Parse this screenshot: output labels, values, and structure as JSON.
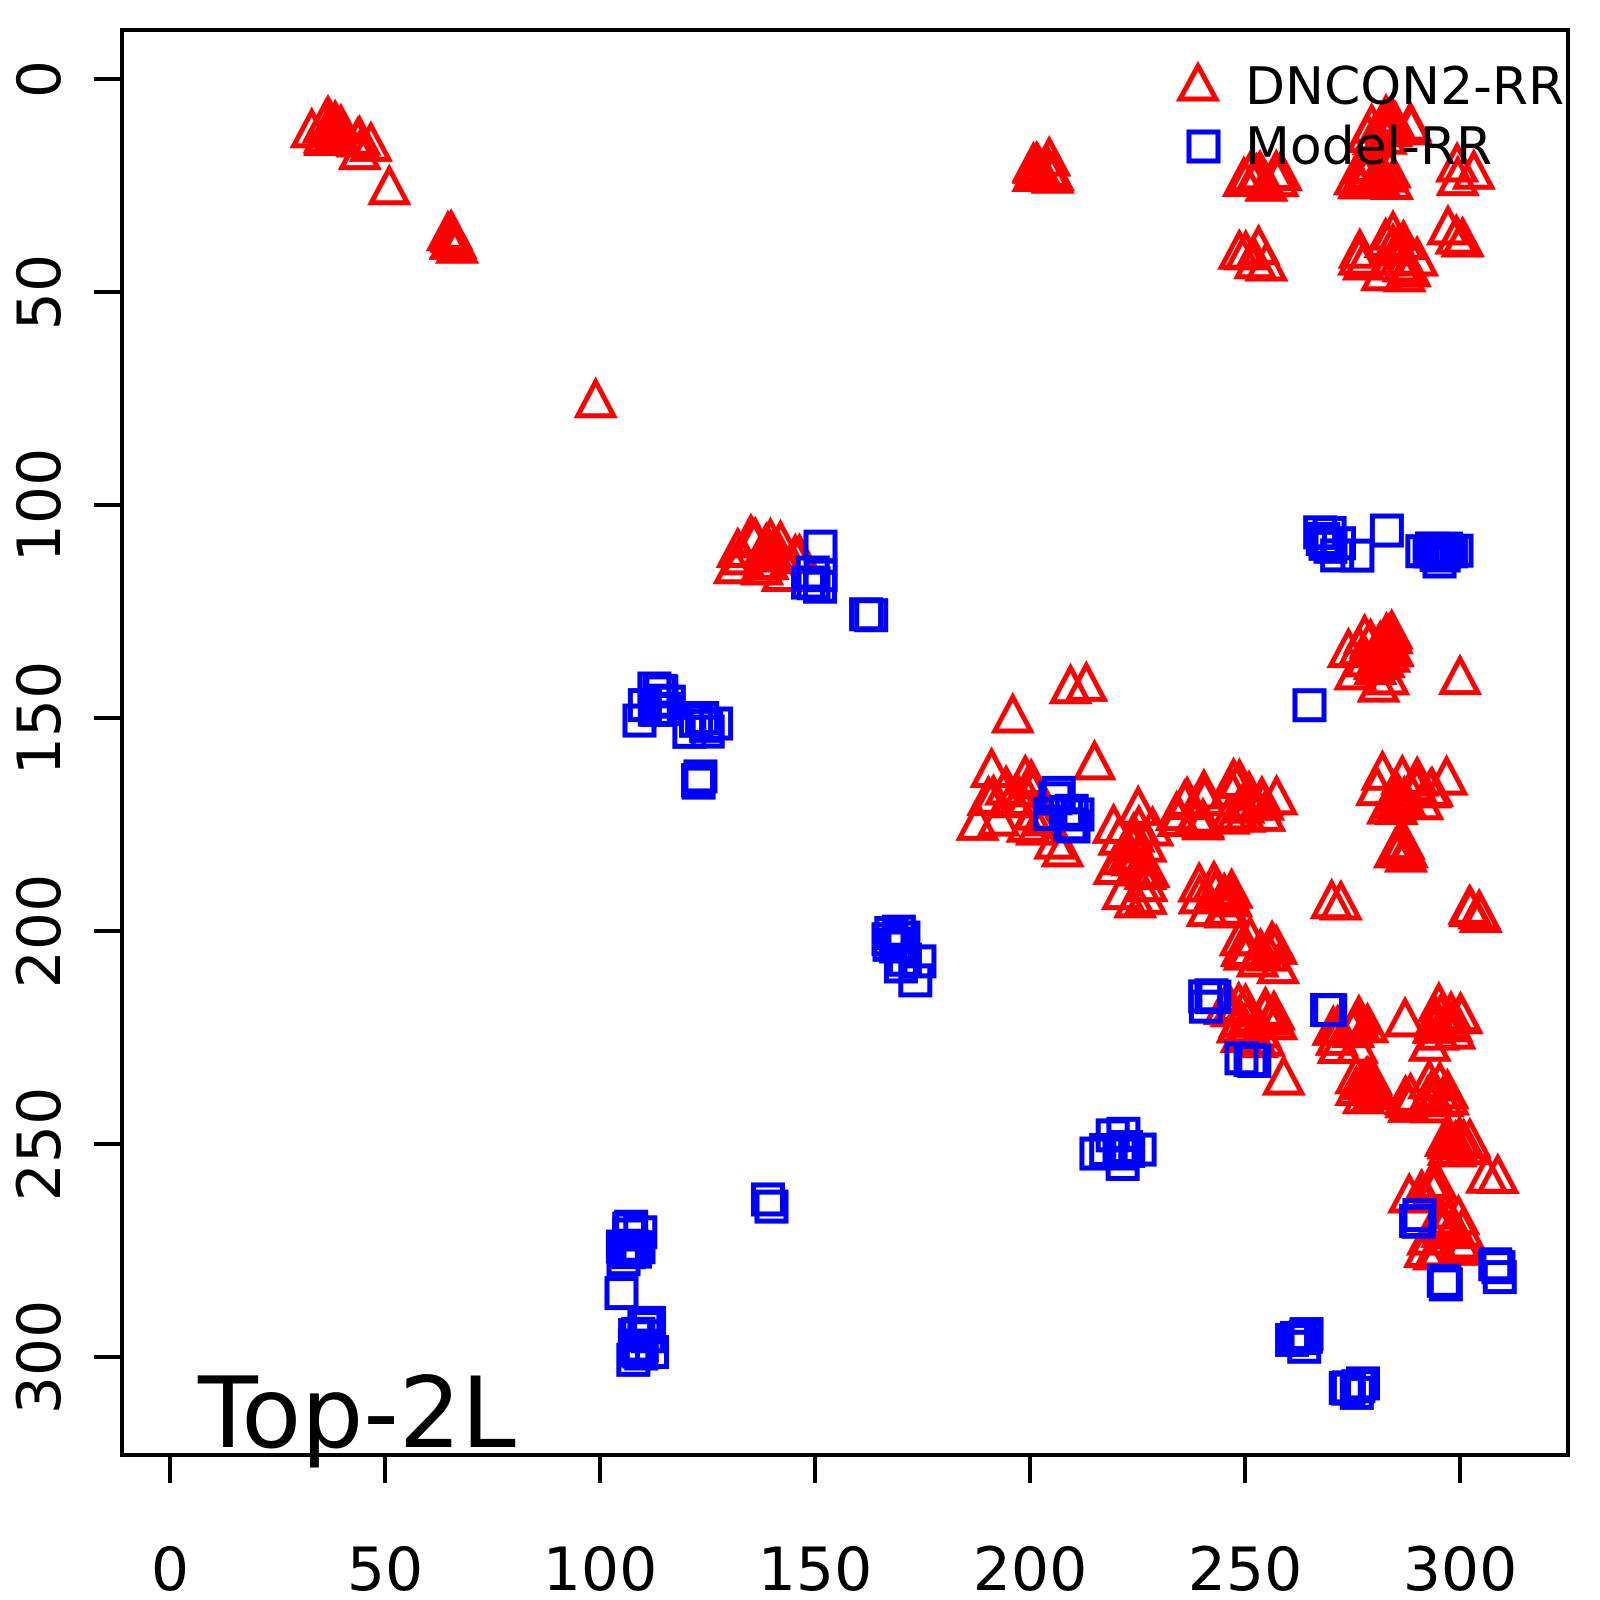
{
  "figure": {
    "background": "#FFFFFF",
    "frame_color": "#000000"
  },
  "legend": {
    "position": "top-right",
    "items": [
      {
        "label": "DNCON2-RR",
        "marker": "open-triangle",
        "color": "#FF0000"
      },
      {
        "label": "Model-RR",
        "marker": "open-square",
        "color": "#0000FF"
      }
    ]
  },
  "annotation": {
    "text": "Top-2L",
    "position": "bottom-left",
    "color": "#000000"
  },
  "chart_data": {
    "type": "scatter",
    "title": "",
    "xlabel": "",
    "ylabel": "",
    "grid": false,
    "x_ticks": [
      0,
      50,
      100,
      150,
      200,
      250,
      300
    ],
    "y_ticks": [
      0,
      50,
      100,
      150,
      200,
      250,
      300
    ],
    "xlim": [
      -11,
      325
    ],
    "ylim": [
      -11.5,
      323
    ],
    "y_axis_reversed": true,
    "legend_position": "top-right",
    "annotation": {
      "text": "Top-2L"
    },
    "cluster_note": "Overlapping contact-map points encoded as clusters: center (x,y) in residue indices, n = point count, sx/sy = half-spread",
    "series": [
      {
        "name": "DNCON2-RR",
        "marker": "open-triangle",
        "color": "#FF0000",
        "clusters": [
          {
            "x": 37,
            "y": 12,
            "n": 14,
            "sx": 3,
            "sy": 2.5
          },
          {
            "x": 45,
            "y": 16,
            "n": 4,
            "sx": 2.5,
            "sy": 2
          },
          {
            "x": 51,
            "y": 26,
            "n": 1,
            "sx": 0,
            "sy": 0
          },
          {
            "x": 64,
            "y": 38,
            "n": 7,
            "sx": 2.5,
            "sy": 2
          },
          {
            "x": 99,
            "y": 76,
            "n": 1,
            "sx": 0,
            "sy": 0
          },
          {
            "x": 139,
            "y": 112,
            "n": 20,
            "sx": 6,
            "sy": 4.5
          },
          {
            "x": 203,
            "y": 22,
            "n": 12,
            "sx": 3,
            "sy": 2.5
          },
          {
            "x": 284,
            "y": 12,
            "n": 12,
            "sx": 5,
            "sy": 2.5
          },
          {
            "x": 252,
            "y": 23,
            "n": 9,
            "sx": 6,
            "sy": 3
          },
          {
            "x": 281,
            "y": 23,
            "n": 12,
            "sx": 6,
            "sy": 3
          },
          {
            "x": 300,
            "y": 23,
            "n": 3,
            "sx": 4,
            "sy": 2
          },
          {
            "x": 253,
            "y": 42,
            "n": 5,
            "sx": 4,
            "sy": 3
          },
          {
            "x": 282,
            "y": 42,
            "n": 14,
            "sx": 6,
            "sy": 4
          },
          {
            "x": 301,
            "y": 38,
            "n": 4,
            "sx": 4,
            "sy": 2.5
          },
          {
            "x": 212,
            "y": 142,
            "n": 2,
            "sx": 3,
            "sy": 1
          },
          {
            "x": 196,
            "y": 150,
            "n": 1,
            "sx": 0,
            "sy": 0
          },
          {
            "x": 196,
            "y": 170,
            "n": 18,
            "sx": 7,
            "sy": 6
          },
          {
            "x": 215,
            "y": 161,
            "n": 1,
            "sx": 0,
            "sy": 0
          },
          {
            "x": 205,
            "y": 180,
            "n": 2,
            "sx": 3,
            "sy": 2
          },
          {
            "x": 224,
            "y": 182,
            "n": 22,
            "sx": 5,
            "sy": 11
          },
          {
            "x": 238,
            "y": 172,
            "n": 10,
            "sx": 5,
            "sy": 4
          },
          {
            "x": 251,
            "y": 170,
            "n": 14,
            "sx": 6,
            "sy": 4
          },
          {
            "x": 243,
            "y": 192,
            "n": 12,
            "sx": 5,
            "sy": 5
          },
          {
            "x": 253,
            "y": 205,
            "n": 12,
            "sx": 5,
            "sy": 3.5
          },
          {
            "x": 288,
            "y": 168,
            "n": 18,
            "sx": 8,
            "sy": 4
          },
          {
            "x": 286,
            "y": 181,
            "n": 6,
            "sx": 3,
            "sy": 2.5
          },
          {
            "x": 273,
            "y": 194,
            "n": 2,
            "sx": 3,
            "sy": 1
          },
          {
            "x": 301,
            "y": 196,
            "n": 5,
            "sx": 3,
            "sy": 2.5
          },
          {
            "x": 280,
            "y": 136,
            "n": 22,
            "sx": 6,
            "sy": 6
          },
          {
            "x": 300,
            "y": 141,
            "n": 1,
            "sx": 0,
            "sy": 0
          },
          {
            "x": 252,
            "y": 221,
            "n": 18,
            "sx": 5,
            "sy": 5
          },
          {
            "x": 275,
            "y": 224,
            "n": 10,
            "sx": 4,
            "sy": 3.5
          },
          {
            "x": 259,
            "y": 235,
            "n": 1,
            "sx": 0,
            "sy": 0
          },
          {
            "x": 295,
            "y": 222,
            "n": 14,
            "sx": 6,
            "sy": 4
          },
          {
            "x": 293,
            "y": 239,
            "n": 12,
            "sx": 6,
            "sy": 3.5
          },
          {
            "x": 278,
            "y": 237,
            "n": 10,
            "sx": 4,
            "sy": 3
          },
          {
            "x": 300,
            "y": 250,
            "n": 10,
            "sx": 3,
            "sy": 2
          },
          {
            "x": 292,
            "y": 261,
            "n": 8,
            "sx": 4,
            "sy": 2
          },
          {
            "x": 308,
            "y": 258,
            "n": 2,
            "sx": 2,
            "sy": 1.5
          },
          {
            "x": 296,
            "y": 272,
            "n": 14,
            "sx": 4.5,
            "sy": 5
          }
        ]
      },
      {
        "name": "Model-RR",
        "marker": "open-square",
        "color": "#0000FF",
        "clusters": [
          {
            "x": 151,
            "y": 117,
            "n": 6,
            "sx": 2.5,
            "sy": 6
          },
          {
            "x": 163,
            "y": 125,
            "n": 2,
            "sx": 2.5,
            "sy": 1
          },
          {
            "x": 113,
            "y": 146,
            "n": 10,
            "sx": 3.5,
            "sy": 3.5
          },
          {
            "x": 124,
            "y": 153,
            "n": 6,
            "sx": 2.5,
            "sy": 2.5
          },
          {
            "x": 122,
            "y": 165,
            "n": 3,
            "sx": 1.5,
            "sy": 3
          },
          {
            "x": 170,
            "y": 206,
            "n": 12,
            "sx": 5,
            "sy": 5
          },
          {
            "x": 208,
            "y": 172,
            "n": 8,
            "sx": 3.5,
            "sy": 5
          },
          {
            "x": 242,
            "y": 217,
            "n": 5,
            "sx": 3,
            "sy": 3
          },
          {
            "x": 252,
            "y": 230,
            "n": 3,
            "sx": 2.5,
            "sy": 1.5
          },
          {
            "x": 268,
            "y": 219,
            "n": 2,
            "sx": 2,
            "sy": 1
          },
          {
            "x": 221,
            "y": 251,
            "n": 9,
            "sx": 5,
            "sy": 4.5
          },
          {
            "x": 107,
            "y": 273,
            "n": 12,
            "sx": 2.5,
            "sy": 4
          },
          {
            "x": 105,
            "y": 285,
            "n": 1,
            "sx": 0,
            "sy": 0
          },
          {
            "x": 110,
            "y": 296,
            "n": 12,
            "sx": 3,
            "sy": 4.5
          },
          {
            "x": 140,
            "y": 264,
            "n": 2,
            "sx": 1,
            "sy": 1
          },
          {
            "x": 271,
            "y": 109,
            "n": 10,
            "sx": 4,
            "sy": 2.5
          },
          {
            "x": 283,
            "y": 106,
            "n": 1,
            "sx": 0,
            "sy": 0
          },
          {
            "x": 295,
            "y": 111,
            "n": 12,
            "sx": 4.5,
            "sy": 2.5
          },
          {
            "x": 265,
            "y": 147,
            "n": 1,
            "sx": 0,
            "sy": 0
          },
          {
            "x": 290,
            "y": 267,
            "n": 3,
            "sx": 1.5,
            "sy": 3
          },
          {
            "x": 297,
            "y": 282,
            "n": 2,
            "sx": 1.5,
            "sy": 1.5
          },
          {
            "x": 308,
            "y": 279,
            "n": 3,
            "sx": 1.5,
            "sy": 3
          },
          {
            "x": 264,
            "y": 297,
            "n": 6,
            "sx": 3,
            "sy": 2.5
          },
          {
            "x": 276,
            "y": 307,
            "n": 6,
            "sx": 3.5,
            "sy": 3
          }
        ]
      }
    ]
  }
}
